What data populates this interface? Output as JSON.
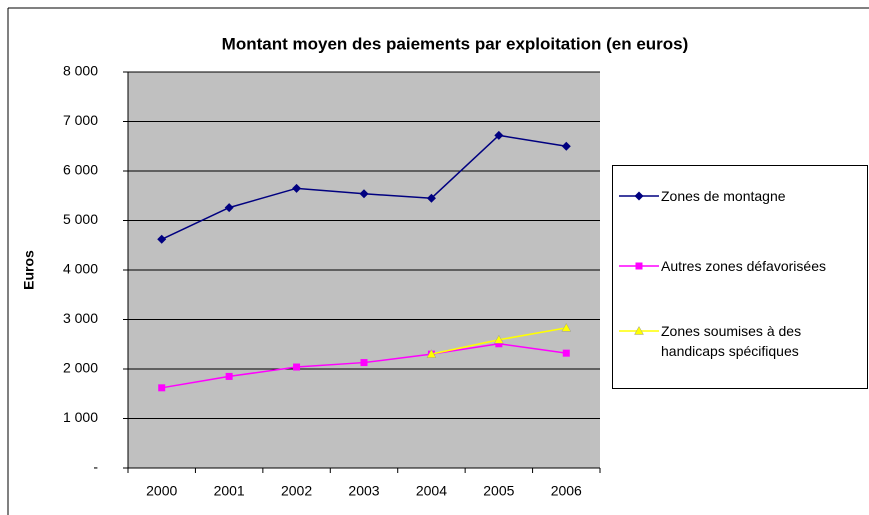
{
  "chart_data": {
    "type": "line",
    "title": "Montant moyen des paiements par exploitation (en euros)",
    "y_label": "Euros",
    "categories": [
      "2000",
      "2001",
      "2002",
      "2003",
      "2004",
      "2005",
      "2006"
    ],
    "series": [
      {
        "name": "Zones de montagne",
        "color": "#000080",
        "marker": "diamond",
        "values": [
          4620,
          5260,
          5650,
          5540,
          5450,
          6720,
          6500
        ]
      },
      {
        "name": "Autres zones défavorisées",
        "color": "#ff00ff",
        "marker": "square",
        "values": [
          1620,
          1850,
          2040,
          2130,
          2300,
          2510,
          2320
        ]
      },
      {
        "name": "Zones soumises à des handicaps spécifiques",
        "color": "#ffff00",
        "marker": "triangle",
        "values": [
          null,
          null,
          null,
          null,
          2300,
          2590,
          2830
        ]
      }
    ],
    "ylim": [
      0,
      8000
    ],
    "yticks": [
      {
        "value": 0,
        "label": "-"
      },
      {
        "value": 1000,
        "label": "1 000"
      },
      {
        "value": 2000,
        "label": "2 000"
      },
      {
        "value": 3000,
        "label": "3 000"
      },
      {
        "value": 4000,
        "label": "4 000"
      },
      {
        "value": 5000,
        "label": "5 000"
      },
      {
        "value": 6000,
        "label": "6 000"
      },
      {
        "value": 7000,
        "label": "7 000"
      },
      {
        "value": 8000,
        "label": "8 000"
      }
    ],
    "grid": true,
    "plot_background": "#c0c0c0",
    "legend_position": "right"
  }
}
